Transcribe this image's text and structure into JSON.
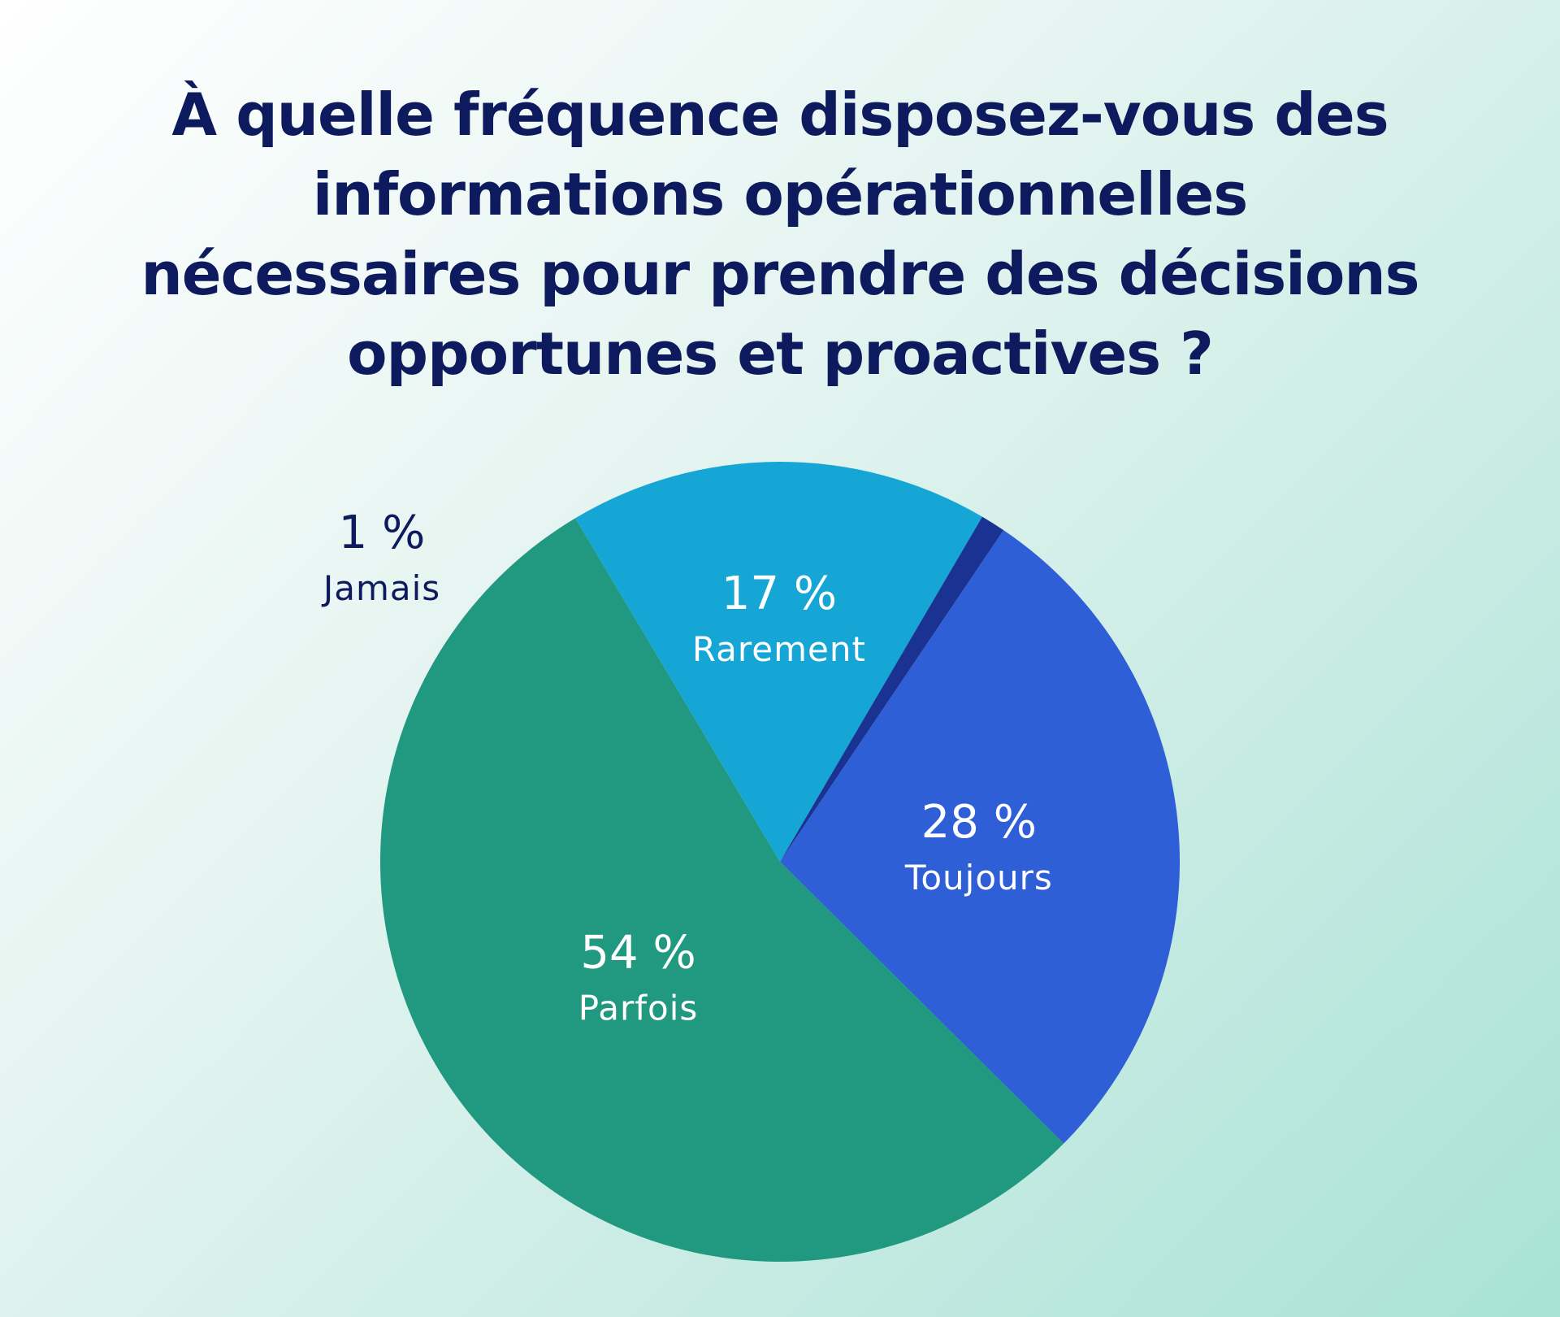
{
  "title_lines": [
    "À quelle fréquence disposez-vous des",
    "informations opérationnelles",
    "nécessaires pour prendre des décisions",
    "opportunes et proactives ?"
  ],
  "chart_data": {
    "type": "pie",
    "title": "À quelle fréquence disposez-vous des informations opérationnelles nécessaires pour prendre des décisions opportunes et proactives ?",
    "unit": "%",
    "slices": [
      {
        "label": "Toujours",
        "value": 28,
        "value_label": "28 %",
        "color": "#2f5fd6",
        "text_color": "#ffffff"
      },
      {
        "label": "Parfois",
        "value": 54,
        "value_label": "54 %",
        "color": "#209980",
        "text_color": "#ffffff"
      },
      {
        "label": "Rarement",
        "value": 17,
        "value_label": "17 %",
        "color": "#15a6d5",
        "text_color": "#ffffff"
      },
      {
        "label": "Jamais",
        "value": 1,
        "value_label": "1 %",
        "color": "#1a3393",
        "text_color": "#0d1b5e"
      }
    ]
  }
}
